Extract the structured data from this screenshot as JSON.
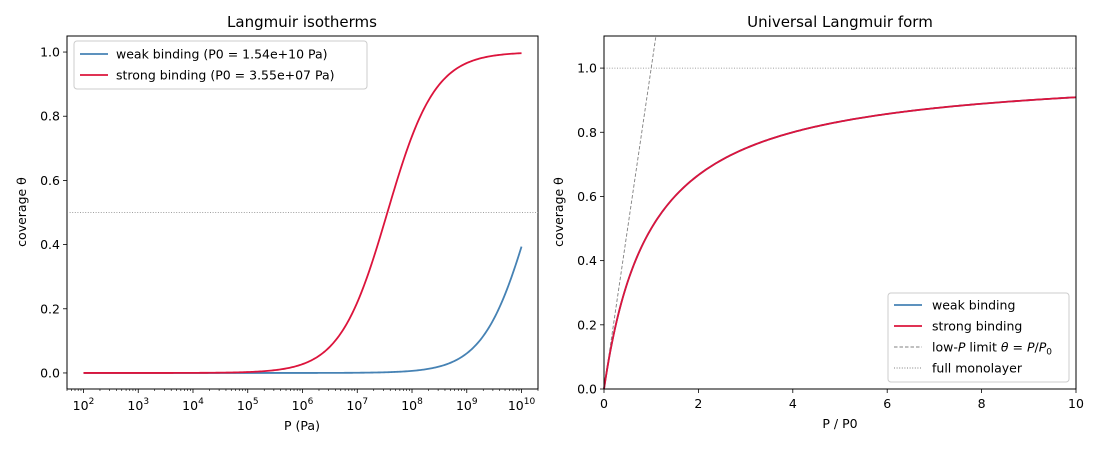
{
  "chart_data": [
    {
      "type": "line",
      "title": "Langmuir isotherms",
      "xlabel": "P (Pa)",
      "ylabel": "coverage θ",
      "xscale": "log",
      "xlim": [
        50,
        20000000000
      ],
      "ylim": [
        -0.05,
        1.05
      ],
      "x_ticks": [
        {
          "value": 100,
          "base": "10",
          "exp": "2"
        },
        {
          "value": 1000,
          "base": "10",
          "exp": "3"
        },
        {
          "value": 10000,
          "base": "10",
          "exp": "4"
        },
        {
          "value": 100000,
          "base": "10",
          "exp": "5"
        },
        {
          "value": 1000000,
          "base": "10",
          "exp": "6"
        },
        {
          "value": 10000000,
          "base": "10",
          "exp": "7"
        },
        {
          "value": 100000000,
          "base": "10",
          "exp": "8"
        },
        {
          "value": 1000000000,
          "base": "10",
          "exp": "9"
        },
        {
          "value": 10000000000,
          "base": "10",
          "exp": "10"
        }
      ],
      "y_ticks": [
        "0.0",
        "0.2",
        "0.4",
        "0.6",
        "0.8",
        "1.0"
      ],
      "grid": false,
      "legend": "upper-left",
      "series": [
        {
          "name": "weak binding (P0 = 1.54e+10 Pa)",
          "color": "#4682b4",
          "P0": 15400000000,
          "x_range": [
            100,
            10000000000
          ]
        },
        {
          "name": "strong binding (P0 = 3.55e+07 Pa)",
          "color": "#dc143c",
          "P0": 35500000,
          "x_range": [
            100,
            10000000000
          ]
        }
      ],
      "reference_lines": [
        {
          "type": "horizontal",
          "y": 0.5,
          "style": "dotted",
          "color": "#808080"
        }
      ]
    },
    {
      "type": "line",
      "title": "Universal Langmuir form",
      "xlabel": "P / P0",
      "ylabel": "coverage θ",
      "xlim": [
        0,
        10
      ],
      "ylim": [
        0,
        1.1
      ],
      "x_ticks": [
        "0",
        "2",
        "4",
        "6",
        "8",
        "10"
      ],
      "y_ticks": [
        "0.0",
        "0.2",
        "0.4",
        "0.6",
        "0.8",
        "1.0"
      ],
      "grid": false,
      "legend": "lower-right",
      "series": [
        {
          "name": "weak binding",
          "color": "#4682b4",
          "function": "θ = x / (1 + x)",
          "x_range": [
            0,
            10
          ]
        },
        {
          "name": "strong binding",
          "color": "#dc143c",
          "function": "θ = x / (1 + x)",
          "x_range": [
            0,
            10
          ]
        }
      ],
      "reference_lines": [
        {
          "name": "low-P limit θ = P/P₀",
          "type": "line",
          "slope": 1,
          "style": "dashed",
          "color": "#808080"
        },
        {
          "name": "full monolayer",
          "type": "horizontal",
          "y": 1.0,
          "style": "dotted",
          "color": "#808080"
        }
      ]
    }
  ]
}
